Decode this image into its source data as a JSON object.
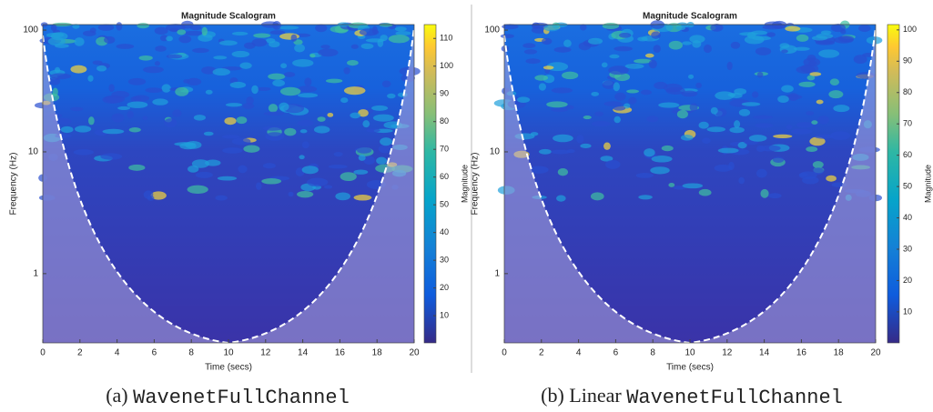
{
  "chart_data": [
    {
      "type": "heatmap",
      "title": "Magnitude Scalogram",
      "xlabel": "Time (secs)",
      "ylabel": "Frequency (Hz)",
      "xlim": [
        0,
        20
      ],
      "xticks": [
        0,
        2,
        4,
        6,
        8,
        10,
        12,
        14,
        16,
        18,
        20
      ],
      "ylim": [
        0.27,
        111
      ],
      "yticks": [
        1,
        10,
        100
      ],
      "yscale": "log",
      "colorbar_label": "Magnitude",
      "clim": [
        0.2,
        115
      ],
      "cticks": [
        10,
        20,
        30,
        40,
        50,
        60,
        70,
        80,
        90,
        100,
        110
      ],
      "caption_prefix": "(a)",
      "caption_name": "WavenetFullChannel"
    },
    {
      "type": "heatmap",
      "title": "Magnitude Scalogram",
      "xlabel": "Time (secs)",
      "ylabel": "Frequency (Hz)",
      "xlim": [
        0,
        20
      ],
      "xticks": [
        0,
        2,
        4,
        6,
        8,
        10,
        12,
        14,
        16,
        18,
        20
      ],
      "ylim": [
        0.27,
        111
      ],
      "yticks": [
        1,
        10,
        100
      ],
      "yscale": "log",
      "colorbar_label": "Magnitude",
      "clim": [
        0.1,
        101.7
      ],
      "cticks": [
        10,
        20,
        30,
        40,
        50,
        60,
        70,
        80,
        90,
        100
      ],
      "caption_prefix": "(b) Linear",
      "caption_name": "WavenetFullChannel"
    }
  ]
}
